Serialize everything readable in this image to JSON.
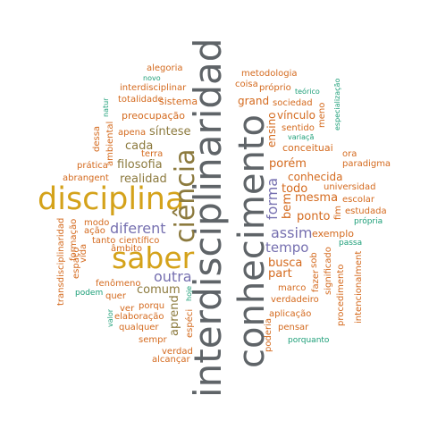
{
  "palette": {
    "gray": "#5f6468",
    "gold": "#d4a21a",
    "orange": "#d46a1e",
    "purple": "#7670b0",
    "teal": "#1b9e77",
    "olive": "#8c7a3e"
  },
  "words": [
    {
      "text": "interdisciplinaridad",
      "size": "xl",
      "color": "gray",
      "rotated": true
    },
    {
      "text": "conhecimento",
      "size": "xl",
      "color": "gray",
      "rotated": true
    },
    {
      "text": "disciplina",
      "size": "lg",
      "color": "gold",
      "rotated": false
    },
    {
      "text": "saber",
      "size": "lg",
      "color": "gold",
      "rotated": false
    },
    {
      "text": "ciência",
      "size": "lg",
      "color": "olive",
      "rotated": true
    },
    {
      "text": "diferent",
      "size": "md",
      "color": "purple",
      "rotated": false
    },
    {
      "text": "outra",
      "size": "md",
      "color": "purple",
      "rotated": false
    },
    {
      "text": "forma",
      "size": "md",
      "color": "purple",
      "rotated": true
    },
    {
      "text": "assim",
      "size": "md",
      "color": "purple",
      "rotated": false
    },
    {
      "text": "tempo",
      "size": "md",
      "color": "purple",
      "rotated": false
    },
    {
      "text": "filosofia",
      "size": "sm",
      "color": "olive",
      "rotated": false
    },
    {
      "text": "realidad",
      "size": "sm",
      "color": "olive",
      "rotated": false
    },
    {
      "text": "cada",
      "size": "sm",
      "color": "olive",
      "rotated": false
    },
    {
      "text": "síntese",
      "size": "sm",
      "color": "olive",
      "rotated": false
    },
    {
      "text": "comum",
      "size": "sm",
      "color": "olive",
      "rotated": false
    },
    {
      "text": "aprend",
      "size": "sm",
      "color": "olive",
      "rotated": true
    },
    {
      "text": "preocupação",
      "size": "xs",
      "color": "orange",
      "rotated": false
    },
    {
      "text": "todo",
      "size": "sm",
      "color": "orange",
      "rotated": false
    },
    {
      "text": "porém",
      "size": "sm",
      "color": "orange",
      "rotated": false
    },
    {
      "text": "conhecida",
      "size": "sm",
      "color": "orange",
      "rotated": false
    },
    {
      "text": "mesma",
      "size": "sm",
      "color": "orange",
      "rotated": false
    },
    {
      "text": "ponto",
      "size": "sm",
      "color": "orange",
      "rotated": false
    },
    {
      "text": "part",
      "size": "sm",
      "color": "orange",
      "rotated": false
    },
    {
      "text": "busca",
      "size": "sm",
      "color": "orange",
      "rotated": false
    },
    {
      "text": "bem",
      "size": "sm",
      "color": "orange",
      "rotated": true
    },
    {
      "text": "ensino",
      "size": "sm",
      "color": "orange",
      "rotated": true
    },
    {
      "text": "vínculo",
      "size": "sm",
      "color": "orange",
      "rotated": false
    },
    {
      "text": "grand",
      "size": "sm",
      "color": "orange",
      "rotated": false
    },
    {
      "text": "alegoria",
      "size": "xs",
      "color": "orange",
      "rotated": false
    },
    {
      "text": "novo",
      "size": "xxs",
      "color": "teal",
      "rotated": false
    },
    {
      "text": "interdisciplinar",
      "size": "xs",
      "color": "orange",
      "rotated": false
    },
    {
      "text": "totalidade",
      "size": "xs",
      "color": "orange",
      "rotated": false
    },
    {
      "text": "sistema",
      "size": "xs",
      "color": "orange",
      "rotated": false
    },
    {
      "text": "natur",
      "size": "xxs",
      "color": "teal",
      "rotated": true
    },
    {
      "text": "apena",
      "size": "xs",
      "color": "orange",
      "rotated": false
    },
    {
      "text": "terra",
      "size": "xs",
      "color": "orange",
      "rotated": false
    },
    {
      "text": "dessa",
      "size": "xs",
      "color": "orange",
      "rotated": true
    },
    {
      "text": "ambiental",
      "size": "xs",
      "color": "orange",
      "rotated": true
    },
    {
      "text": "prática",
      "size": "xs",
      "color": "orange",
      "rotated": false
    },
    {
      "text": "abrangent",
      "size": "xs",
      "color": "orange",
      "rotated": false
    },
    {
      "text": "modo",
      "size": "xs",
      "color": "orange",
      "rotated": false
    },
    {
      "text": "ação",
      "size": "xs",
      "color": "orange",
      "rotated": false
    },
    {
      "text": "tanto",
      "size": "xs",
      "color": "orange",
      "rotated": false
    },
    {
      "text": "científico",
      "size": "xs",
      "color": "orange",
      "rotated": false
    },
    {
      "text": "âmbito",
      "size": "xs",
      "color": "orange",
      "rotated": false
    },
    {
      "text": "fenômeno",
      "size": "xs",
      "color": "orange",
      "rotated": false
    },
    {
      "text": "quer",
      "size": "xs",
      "color": "orange",
      "rotated": false
    },
    {
      "text": "porqu",
      "size": "xs",
      "color": "orange",
      "rotated": false
    },
    {
      "text": "ver",
      "size": "xs",
      "color": "orange",
      "rotated": false
    },
    {
      "text": "elaboração",
      "size": "xs",
      "color": "orange",
      "rotated": false
    },
    {
      "text": "qualquer",
      "size": "xs",
      "color": "orange",
      "rotated": false
    },
    {
      "text": "sempr",
      "size": "xs",
      "color": "orange",
      "rotated": false
    },
    {
      "text": "verdad",
      "size": "xs",
      "color": "orange",
      "rotated": false
    },
    {
      "text": "alcançar",
      "size": "xs",
      "color": "orange",
      "rotated": false
    },
    {
      "text": "espéci",
      "size": "xs",
      "color": "orange",
      "rotated": true
    },
    {
      "text": "hoje",
      "size": "xxs",
      "color": "teal",
      "rotated": true
    },
    {
      "text": "valor",
      "size": "xxs",
      "color": "teal",
      "rotated": true
    },
    {
      "text": "podem",
      "size": "xxs",
      "color": "teal",
      "rotated": false
    },
    {
      "text": "transdisciplinaridad",
      "size": "xs",
      "color": "orange",
      "rotated": true
    },
    {
      "text": "formação",
      "size": "xs",
      "color": "orange",
      "rotated": true
    },
    {
      "text": "vida",
      "size": "xs",
      "color": "orange",
      "rotated": true
    },
    {
      "text": "espaço",
      "size": "xs",
      "color": "orange",
      "rotated": true
    },
    {
      "text": "metodologia",
      "size": "xs",
      "color": "orange",
      "rotated": false
    },
    {
      "text": "coisa",
      "size": "xs",
      "color": "orange",
      "rotated": false
    },
    {
      "text": "próprio",
      "size": "xs",
      "color": "orange",
      "rotated": false
    },
    {
      "text": "teórico",
      "size": "xxs",
      "color": "teal",
      "rotated": false
    },
    {
      "text": "especialização",
      "size": "xxs",
      "color": "teal",
      "rotated": true
    },
    {
      "text": "sociedad",
      "size": "xs",
      "color": "orange",
      "rotated": false
    },
    {
      "text": "meno",
      "size": "xs",
      "color": "orange",
      "rotated": true
    },
    {
      "text": "sentido",
      "size": "xs",
      "color": "orange",
      "rotated": false
    },
    {
      "text": "variaçã",
      "size": "xxs",
      "color": "teal",
      "rotated": false
    },
    {
      "text": "conceituai",
      "size": "xs",
      "color": "orange",
      "rotated": false
    },
    {
      "text": "ora",
      "size": "xs",
      "color": "orange",
      "rotated": false
    },
    {
      "text": "paradigma",
      "size": "xs",
      "color": "orange",
      "rotated": false
    },
    {
      "text": "universidad",
      "size": "xs",
      "color": "orange",
      "rotated": false
    },
    {
      "text": "escolar",
      "size": "xs",
      "color": "orange",
      "rotated": false
    },
    {
      "text": "estudada",
      "size": "xs",
      "color": "orange",
      "rotated": false
    },
    {
      "text": "fim",
      "size": "xs",
      "color": "orange",
      "rotated": true
    },
    {
      "text": "própria",
      "size": "xxs",
      "color": "teal",
      "rotated": false
    },
    {
      "text": "exemplo",
      "size": "xs",
      "color": "orange",
      "rotated": false
    },
    {
      "text": "passa",
      "size": "xxs",
      "color": "teal",
      "rotated": false
    },
    {
      "text": "sob",
      "size": "xs",
      "color": "orange",
      "rotated": true
    },
    {
      "text": "fazer",
      "size": "xs",
      "color": "orange",
      "rotated": true
    },
    {
      "text": "significado",
      "size": "xs",
      "color": "orange",
      "rotated": true
    },
    {
      "text": "procedimento",
      "size": "xs",
      "color": "orange",
      "rotated": true
    },
    {
      "text": "intencionalment",
      "size": "xs",
      "color": "orange",
      "rotated": true
    },
    {
      "text": "marco",
      "size": "xs",
      "color": "orange",
      "rotated": false
    },
    {
      "text": "verdadeiro",
      "size": "xs",
      "color": "orange",
      "rotated": false
    },
    {
      "text": "aplicação",
      "size": "xs",
      "color": "orange",
      "rotated": false
    },
    {
      "text": "pensar",
      "size": "xs",
      "color": "orange",
      "rotated": false
    },
    {
      "text": "poderia",
      "size": "xs",
      "color": "orange",
      "rotated": true
    },
    {
      "text": "porquanto",
      "size": "xxs",
      "color": "teal",
      "rotated": false
    }
  ]
}
